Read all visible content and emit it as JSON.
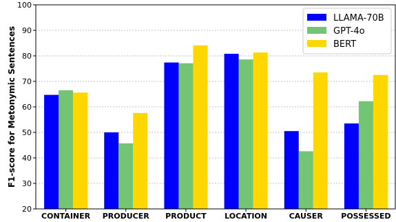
{
  "chart_data": {
    "type": "bar",
    "categories": [
      "CONTAINER",
      "PRODUCER",
      "PRODUCT",
      "LOCATION",
      "CAUSER",
      "POSSESSED"
    ],
    "series": [
      {
        "name": "LLAMA-70B",
        "color": "#0000ff",
        "values": [
          64.7,
          50.0,
          77.4,
          80.8,
          50.5,
          53.5
        ]
      },
      {
        "name": "GPT-4o",
        "color": "#74c476",
        "values": [
          66.5,
          45.7,
          77.1,
          78.6,
          42.6,
          62.2
        ]
      },
      {
        "name": "BERT",
        "color": "#ffd700",
        "values": [
          65.6,
          57.6,
          84.1,
          81.3,
          73.5,
          72.5
        ]
      }
    ],
    "title": "",
    "xlabel": "",
    "ylabel": "F1-score for Metonymic Sentences",
    "ylim": [
      20,
      100
    ],
    "yticks": [
      20,
      30,
      40,
      50,
      60,
      70,
      80,
      90,
      100
    ],
    "grid": "horizontal",
    "legend_position": "top-right"
  }
}
